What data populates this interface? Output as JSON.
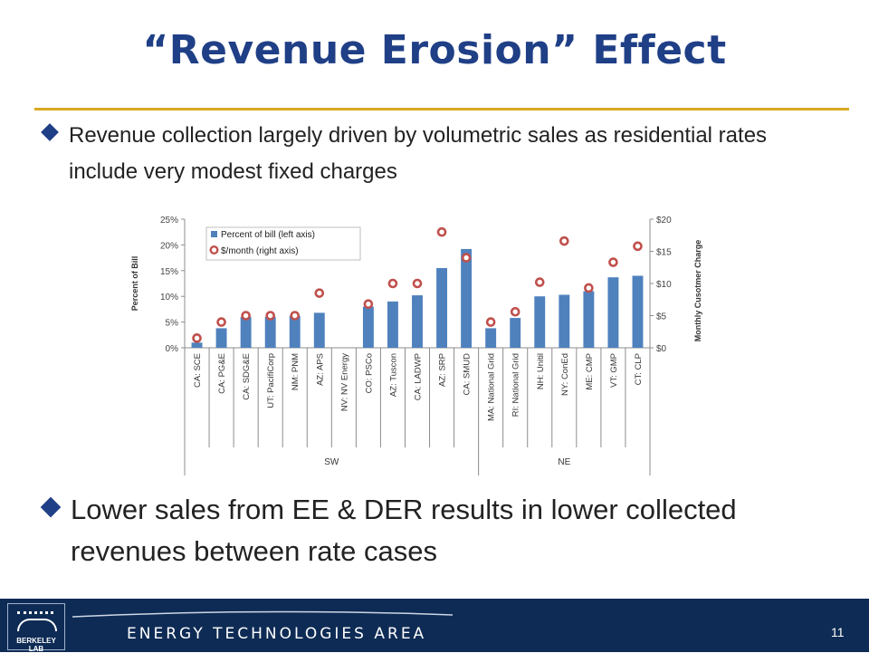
{
  "slide": {
    "title": "“Revenue Erosion” Effect",
    "bullet1": "Revenue collection largely driven by volumetric sales as residential rates include very modest fixed charges",
    "bullet2": "Lower sales from EE & DER results in lower collected revenues between rate cases"
  },
  "footer": {
    "logo_text": "BERKELEY LAB",
    "area_label": "ENERGY TECHNOLOGIES AREA",
    "page_number": "11"
  },
  "chart_data": {
    "type": "bar",
    "categories": [
      "CA: SCE",
      "CA: PG&E",
      "CA: SDG&E",
      "UT: PacifiCorp",
      "NM: PNM",
      "AZ: APS",
      "NV: NV Energy",
      "CO: PSCo",
      "AZ: Tuscon",
      "CA: LADWP",
      "AZ: SRP",
      "CA: SMUD",
      "MA: National Grid",
      "RI: National Grid",
      "NH: Unitil",
      "NY: ConEd",
      "ME: CMP",
      "VT: GMP",
      "CT: CLP"
    ],
    "groups": [
      {
        "label": "SW",
        "count": 12
      },
      {
        "label": "NE",
        "count": 7
      }
    ],
    "series": [
      {
        "name": "Percent of bill (left axis)",
        "type": "bar",
        "axis": "left",
        "color": "#4f81bd",
        "values": [
          1.0,
          3.8,
          6.0,
          6.0,
          6.2,
          6.8,
          0,
          8.0,
          9.0,
          10.2,
          15.5,
          19.2,
          3.8,
          5.8,
          10.0,
          10.3,
          11.0,
          13.7,
          14.0
        ]
      },
      {
        "name": "$/month (right axis)",
        "type": "scatter",
        "axis": "right",
        "color": "#c0504d",
        "values": [
          1.5,
          4.0,
          5.0,
          5.0,
          5.0,
          8.5,
          null,
          6.8,
          10.0,
          10.0,
          18.0,
          14.0,
          4.0,
          5.6,
          10.2,
          16.6,
          9.3,
          13.3,
          15.8
        ]
      }
    ],
    "ylabel": "Percent of Bill",
    "ylabel_right": "Monthly Cusotmer Charge",
    "ylim": [
      0,
      25
    ],
    "ylim_right": [
      0,
      20
    ],
    "yticks": [
      "0%",
      "5%",
      "10%",
      "15%",
      "20%",
      "25%"
    ],
    "yticks_right": [
      "$0",
      "$5",
      "$10",
      "$15",
      "$20"
    ],
    "legend_position": "top-left",
    "grid": false
  }
}
